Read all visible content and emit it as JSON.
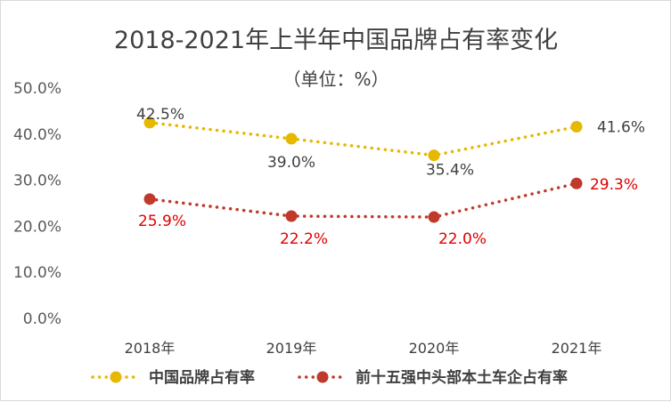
{
  "chart_data": {
    "type": "line",
    "title": "2018-2021年上半年中国品牌占有率变化",
    "subtitle": "（单位：%）",
    "categories": [
      "2018年",
      "2019年",
      "2020年",
      "2021年"
    ],
    "ylim": [
      0,
      50
    ],
    "yticks": [
      "0.0%",
      "10.0%",
      "20.0%",
      "30.0%",
      "40.0%",
      "50.0%"
    ],
    "ytick_values": [
      0,
      10,
      20,
      30,
      40,
      50
    ],
    "grid": false,
    "legend_position": "bottom",
    "series": [
      {
        "name": "中国品牌占有率",
        "values": [
          42.5,
          39.0,
          35.4,
          41.6
        ],
        "labels": [
          "42.5%",
          "39.0%",
          "35.4%",
          "41.6%"
        ],
        "color": "#e6b800",
        "line_style": "dotted"
      },
      {
        "name": "前十五强中头部本土车企占有率",
        "values": [
          25.9,
          22.2,
          22.0,
          29.3
        ],
        "labels": [
          "25.9%",
          "22.2%",
          "22.0%",
          "29.3%"
        ],
        "color": "#c0392b",
        "label_color": "#e00000",
        "line_style": "dotted"
      }
    ]
  }
}
